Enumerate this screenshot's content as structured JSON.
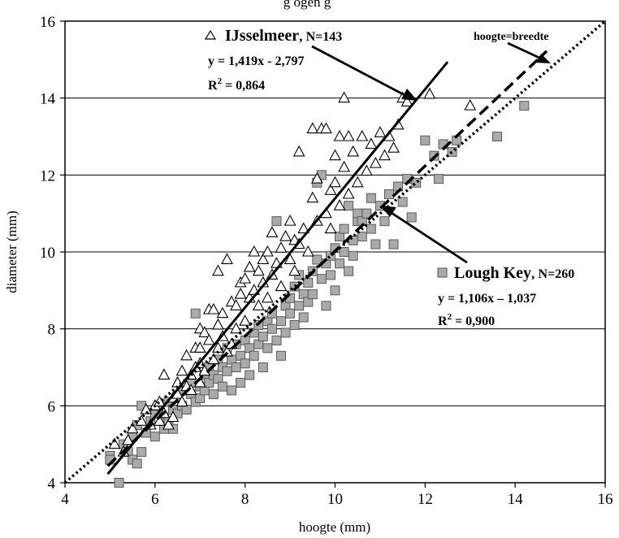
{
  "chart_data": {
    "type": "scatter",
    "title": "",
    "header_fragment": "g ogen   g",
    "xlabel": "hoogte (mm)",
    "ylabel": "diameter (mm)",
    "xlim": [
      4,
      16
    ],
    "ylim": [
      4,
      16
    ],
    "x_ticks": [
      "4",
      "6",
      "8",
      "10",
      "12",
      "14",
      "16"
    ],
    "y_ticks": [
      "4",
      "6",
      "8",
      "10",
      "12",
      "14",
      "16"
    ],
    "grid": "horizontal",
    "series": [
      {
        "name": "IJsselmeer",
        "n_label": "N=143",
        "marker": "triangle-open",
        "equation": "y = 1,419x - 2,797",
        "r2_prefix": "R",
        "r2_sup": "2",
        "r2_value": " = 0,864",
        "trendline": {
          "slope": 1.419,
          "intercept": -2.797,
          "x_range": [
            4.95,
            12.5
          ],
          "style": "solid"
        },
        "points": [
          [
            5.1,
            5.0
          ],
          [
            5.3,
            4.8
          ],
          [
            5.4,
            5.1
          ],
          [
            5.5,
            5.4
          ],
          [
            5.7,
            5.6
          ],
          [
            5.8,
            5.9
          ],
          [
            5.9,
            5.5
          ],
          [
            6.0,
            6.0
          ],
          [
            6.1,
            5.6
          ],
          [
            6.1,
            6.1
          ],
          [
            6.2,
            6.8
          ],
          [
            6.2,
            5.8
          ],
          [
            6.3,
            5.5
          ],
          [
            6.4,
            6.2
          ],
          [
            6.4,
            5.7
          ],
          [
            6.5,
            6.3
          ],
          [
            6.5,
            6.6
          ],
          [
            6.6,
            6.1
          ],
          [
            6.6,
            6.9
          ],
          [
            6.7,
            6.5
          ],
          [
            6.7,
            7.3
          ],
          [
            6.8,
            6.4
          ],
          [
            6.8,
            6.8
          ],
          [
            6.9,
            7.5
          ],
          [
            6.9,
            7.0
          ],
          [
            7.0,
            7.1
          ],
          [
            7.0,
            7.5
          ],
          [
            7.0,
            8.0
          ],
          [
            7.0,
            6.6
          ],
          [
            7.1,
            7.9
          ],
          [
            7.1,
            6.9
          ],
          [
            7.2,
            8.5
          ],
          [
            7.2,
            7.7
          ],
          [
            7.3,
            7.2
          ],
          [
            7.3,
            8.5
          ],
          [
            7.4,
            9.5
          ],
          [
            7.4,
            8.1
          ],
          [
            7.4,
            7.5
          ],
          [
            7.5,
            7.8
          ],
          [
            7.5,
            8.4
          ],
          [
            7.6,
            7.4
          ],
          [
            7.6,
            9.8
          ],
          [
            7.7,
            8.7
          ],
          [
            7.7,
            7.6
          ],
          [
            7.8,
            8.0
          ],
          [
            7.8,
            8.6
          ],
          [
            7.9,
            8.9
          ],
          [
            7.9,
            9.2
          ],
          [
            8.0,
            8.2
          ],
          [
            8.0,
            9.3
          ],
          [
            8.1,
            8.8
          ],
          [
            8.1,
            9.6
          ],
          [
            8.2,
            9.0
          ],
          [
            8.2,
            10.0
          ],
          [
            8.3,
            9.5
          ],
          [
            8.3,
            8.6
          ],
          [
            8.4,
            9.2
          ],
          [
            8.4,
            9.8
          ],
          [
            8.5,
            10.0
          ],
          [
            8.5,
            8.8
          ],
          [
            8.6,
            9.4
          ],
          [
            8.6,
            10.5
          ],
          [
            8.7,
            9.7
          ],
          [
            8.8,
            10.1
          ],
          [
            8.8,
            9.1
          ],
          [
            8.9,
            10.4
          ],
          [
            9.0,
            9.8
          ],
          [
            9.0,
            10.8
          ],
          [
            9.1,
            10.3
          ],
          [
            9.1,
            9.5
          ],
          [
            9.2,
            12.6
          ],
          [
            9.2,
            10.2
          ],
          [
            9.3,
            10.6
          ],
          [
            9.4,
            10.0
          ],
          [
            9.5,
            11.4
          ],
          [
            9.5,
            13.2
          ],
          [
            9.6,
            10.8
          ],
          [
            9.6,
            11.9
          ],
          [
            9.7,
            13.2
          ],
          [
            9.8,
            11.0
          ],
          [
            9.8,
            13.2
          ],
          [
            9.9,
            11.6
          ],
          [
            9.9,
            10.6
          ],
          [
            10.0,
            11.8
          ],
          [
            10.0,
            12.5
          ],
          [
            10.1,
            11.2
          ],
          [
            10.1,
            13.0
          ],
          [
            10.2,
            14.0
          ],
          [
            10.2,
            12.2
          ],
          [
            10.3,
            11.5
          ],
          [
            10.3,
            13.0
          ],
          [
            10.4,
            12.6
          ],
          [
            10.5,
            11.8
          ],
          [
            10.6,
            13.0
          ],
          [
            10.7,
            12.1
          ],
          [
            10.8,
            12.8
          ],
          [
            10.9,
            12.3
          ],
          [
            11.0,
            13.1
          ],
          [
            11.1,
            12.5
          ],
          [
            11.2,
            13.0
          ],
          [
            11.3,
            12.7
          ],
          [
            11.4,
            13.3
          ],
          [
            11.5,
            14.0
          ],
          [
            11.6,
            13.9
          ],
          [
            12.1,
            14.1
          ],
          [
            13.0,
            13.8
          ]
        ]
      },
      {
        "name": "Lough Key",
        "n_label": "N=260",
        "marker": "square-filled",
        "equation": "y = 1,106x – 1,037",
        "r2_prefix": "R",
        "r2_sup": "2",
        "r2_value": " = 0,900",
        "trendline": {
          "slope": 1.106,
          "intercept": -1.037,
          "x_range": [
            4.95,
            14.7
          ],
          "style": "dashed"
        },
        "points": [
          [
            5.0,
            4.7
          ],
          [
            5.0,
            4.6
          ],
          [
            5.2,
            4.0
          ],
          [
            5.3,
            5.0
          ],
          [
            5.4,
            4.8
          ],
          [
            5.5,
            5.2
          ],
          [
            5.5,
            4.6
          ],
          [
            5.6,
            5.5
          ],
          [
            5.6,
            4.5
          ],
          [
            5.7,
            6.0
          ],
          [
            5.7,
            4.8
          ],
          [
            5.8,
            5.3
          ],
          [
            5.9,
            5.6
          ],
          [
            6.0,
            5.8
          ],
          [
            6.0,
            5.2
          ],
          [
            6.1,
            6.0
          ],
          [
            6.2,
            5.7
          ],
          [
            6.2,
            5.4
          ],
          [
            6.3,
            6.1
          ],
          [
            6.3,
            5.6
          ],
          [
            6.4,
            5.9
          ],
          [
            6.4,
            5.4
          ],
          [
            6.5,
            6.2
          ],
          [
            6.5,
            5.8
          ],
          [
            6.6,
            6.4
          ],
          [
            6.6,
            6.0
          ],
          [
            6.7,
            5.9
          ],
          [
            6.8,
            6.3
          ],
          [
            6.8,
            6.6
          ],
          [
            6.9,
            8.4
          ],
          [
            6.9,
            6.1
          ],
          [
            7.0,
            6.5
          ],
          [
            7.0,
            6.2
          ],
          [
            7.1,
            6.8
          ],
          [
            7.1,
            6.4
          ],
          [
            7.2,
            6.6
          ],
          [
            7.2,
            7.0
          ],
          [
            7.3,
            6.3
          ],
          [
            7.3,
            6.8
          ],
          [
            7.4,
            7.2
          ],
          [
            7.4,
            6.7
          ],
          [
            7.5,
            7.0
          ],
          [
            7.5,
            6.5
          ],
          [
            7.6,
            7.5
          ],
          [
            7.6,
            6.9
          ],
          [
            7.7,
            7.2
          ],
          [
            7.7,
            6.4
          ],
          [
            7.8,
            7.6
          ],
          [
            7.8,
            7.0
          ],
          [
            7.9,
            6.6
          ],
          [
            7.9,
            7.3
          ],
          [
            8.0,
            7.7
          ],
          [
            8.0,
            7.1
          ],
          [
            8.1,
            6.8
          ],
          [
            8.1,
            7.5
          ],
          [
            8.2,
            7.9
          ],
          [
            8.2,
            7.3
          ],
          [
            8.3,
            8.1
          ],
          [
            8.3,
            7.6
          ],
          [
            8.4,
            7.0
          ],
          [
            8.4,
            7.8
          ],
          [
            8.5,
            8.2
          ],
          [
            8.5,
            7.5
          ],
          [
            8.6,
            8.0
          ],
          [
            8.6,
            8.4
          ],
          [
            8.7,
            7.7
          ],
          [
            8.7,
            10.8
          ],
          [
            8.8,
            8.2
          ],
          [
            8.8,
            7.3
          ],
          [
            8.9,
            8.6
          ],
          [
            8.9,
            7.9
          ],
          [
            9.0,
            8.4
          ],
          [
            9.0,
            8.8
          ],
          [
            9.1,
            8.1
          ],
          [
            9.1,
            9.1
          ],
          [
            9.2,
            8.6
          ],
          [
            9.2,
            9.4
          ],
          [
            9.3,
            8.3
          ],
          [
            9.3,
            8.9
          ],
          [
            9.4,
            9.2
          ],
          [
            9.4,
            8.7
          ],
          [
            9.5,
            9.5
          ],
          [
            9.5,
            8.9
          ],
          [
            9.6,
            9.8
          ],
          [
            9.6,
            11.8
          ],
          [
            9.7,
            9.3
          ],
          [
            9.7,
            12.0
          ],
          [
            9.8,
            9.7
          ],
          [
            9.8,
            8.6
          ],
          [
            9.9,
            9.9
          ],
          [
            9.9,
            9.4
          ],
          [
            10.0,
            10.1
          ],
          [
            10.0,
            9.0
          ],
          [
            10.1,
            10.4
          ],
          [
            10.1,
            9.7
          ],
          [
            10.2,
            10.0
          ],
          [
            10.2,
            10.6
          ],
          [
            10.3,
            9.5
          ],
          [
            10.3,
            11.2
          ],
          [
            10.4,
            10.3
          ],
          [
            10.4,
            9.9
          ],
          [
            10.5,
            10.8
          ],
          [
            10.5,
            11.0
          ],
          [
            10.6,
            10.4
          ],
          [
            10.6,
            10.8
          ],
          [
            10.7,
            11.0
          ],
          [
            10.8,
            10.6
          ],
          [
            10.8,
            11.4
          ],
          [
            10.9,
            10.2
          ],
          [
            11.0,
            11.2
          ],
          [
            11.1,
            10.8
          ],
          [
            11.2,
            11.5
          ],
          [
            11.3,
            10.2
          ],
          [
            11.4,
            11.7
          ],
          [
            11.5,
            11.3
          ],
          [
            11.6,
            11.9
          ],
          [
            11.7,
            10.9
          ],
          [
            11.8,
            11.8
          ],
          [
            12.0,
            12.9
          ],
          [
            12.2,
            12.5
          ],
          [
            12.3,
            11.9
          ],
          [
            12.4,
            12.8
          ],
          [
            12.6,
            12.6
          ],
          [
            12.7,
            12.9
          ],
          [
            13.6,
            13.0
          ],
          [
            14.2,
            13.8
          ]
        ]
      }
    ],
    "reference_line": {
      "label": "hoogte=breedte",
      "slope": 1,
      "intercept": 0,
      "x_range": [
        4,
        16
      ],
      "style": "dotted"
    }
  }
}
